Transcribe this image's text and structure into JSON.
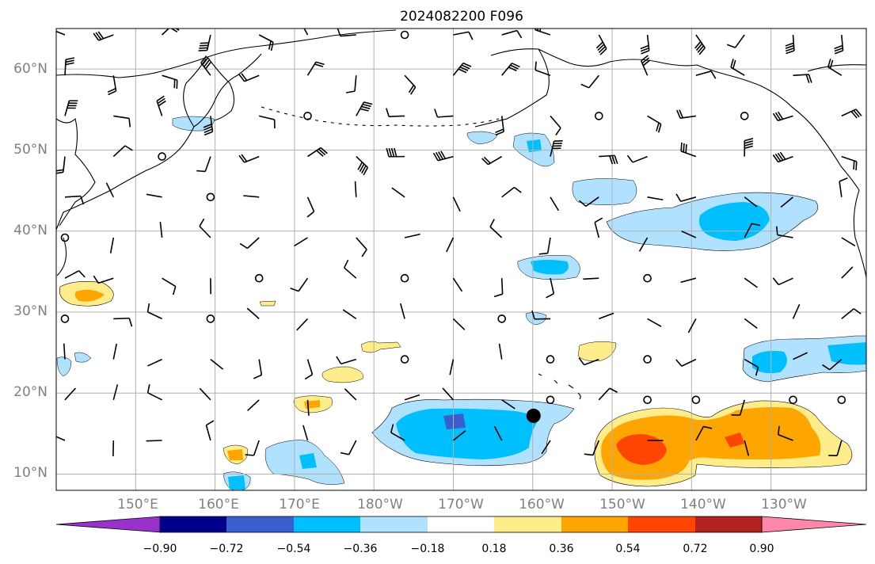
{
  "title": "2024082200 F096",
  "map": {
    "lon_range": [
      140,
      242
    ],
    "lat_range": [
      8,
      65
    ],
    "lon_ticks": [
      {
        "value": 150,
        "label": "150°E"
      },
      {
        "value": 160,
        "label": "160°E"
      },
      {
        "value": 170,
        "label": "170°E"
      },
      {
        "value": 180,
        "label": "180°W"
      },
      {
        "value": 190,
        "label": "170°W"
      },
      {
        "value": 200,
        "label": "160°W"
      },
      {
        "value": 210,
        "label": "150°W"
      },
      {
        "value": 220,
        "label": "140°W"
      },
      {
        "value": 230,
        "label": "130°W"
      }
    ],
    "lat_ticks": [
      {
        "value": 10,
        "label": "10°N"
      },
      {
        "value": 20,
        "label": "20°N"
      },
      {
        "value": 30,
        "label": "30°N"
      },
      {
        "value": 40,
        "label": "40°N"
      },
      {
        "value": 50,
        "label": "50°N"
      },
      {
        "value": 60,
        "label": "60°N"
      }
    ],
    "grid": true,
    "storm_marker": {
      "lon": 200.1,
      "lat": 17.2
    }
  },
  "colorbar": {
    "labels": [
      "−0.90",
      "−0.72",
      "−0.54",
      "−0.36",
      "−0.18",
      "0.18",
      "0.36",
      "0.54",
      "0.72",
      "0.90"
    ],
    "colors": [
      "#9932cc",
      "#00008b",
      "#3a5fcd",
      "#00bfff",
      "#b0e2ff",
      "#ffffff",
      "#ffed8b",
      "#ffa500",
      "#ff4500",
      "#b22222",
      "#ff88aa"
    ],
    "extend": "both"
  },
  "colors": {
    "grid": "#b0b0b0",
    "coast": "#000000",
    "tick_label": "#808080"
  }
}
